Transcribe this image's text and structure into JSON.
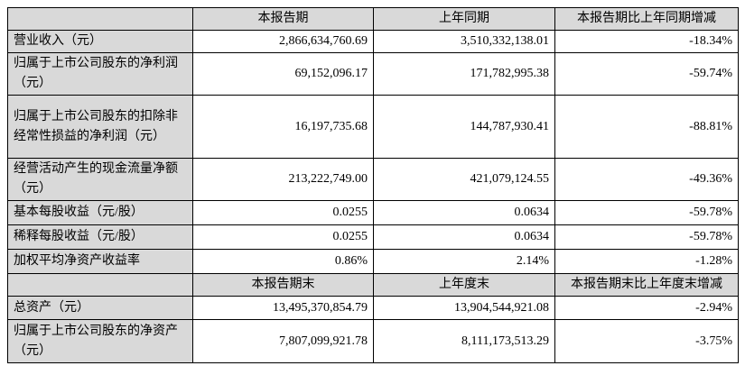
{
  "table": {
    "header": [
      "本报告期",
      "上年同期",
      "本报告期比上年同期增减"
    ],
    "rows": [
      [
        "营业收入（元）",
        "2,866,634,760.69",
        "3,510,332,138.01",
        "-18.34%"
      ],
      [
        "归属于上市公司股东的净利润（元）",
        "69,152,096.17",
        "171,782,995.38",
        "-59.74%"
      ],
      [
        "归属于上市公司股东的扣除非经常性损益的净利润（元）",
        "16,197,735.68",
        "144,787,930.41",
        "-88.81%"
      ],
      [
        "经营活动产生的现金流量净额（元）",
        "213,222,749.00",
        "421,079,124.55",
        "-49.36%"
      ],
      [
        "基本每股收益（元/股）",
        "0.0255",
        "0.0634",
        "-59.78%"
      ],
      [
        "稀释每股收益（元/股）",
        "0.0255",
        "0.0634",
        "-59.78%"
      ],
      [
        "加权平均净资产收益率",
        "0.86%",
        "2.14%",
        "-1.28%"
      ]
    ],
    "header2": [
      "本报告期末",
      "上年度末",
      "本报告期末比上年度末增减"
    ],
    "rows2": [
      [
        "总资产（元）",
        "13,495,370,854.79",
        "13,904,544,921.08",
        "-2.94%"
      ],
      [
        "归属于上市公司股东的净资产（元）",
        "7,807,099,921.78",
        "8,111,173,513.29",
        "-3.75%"
      ]
    ]
  }
}
